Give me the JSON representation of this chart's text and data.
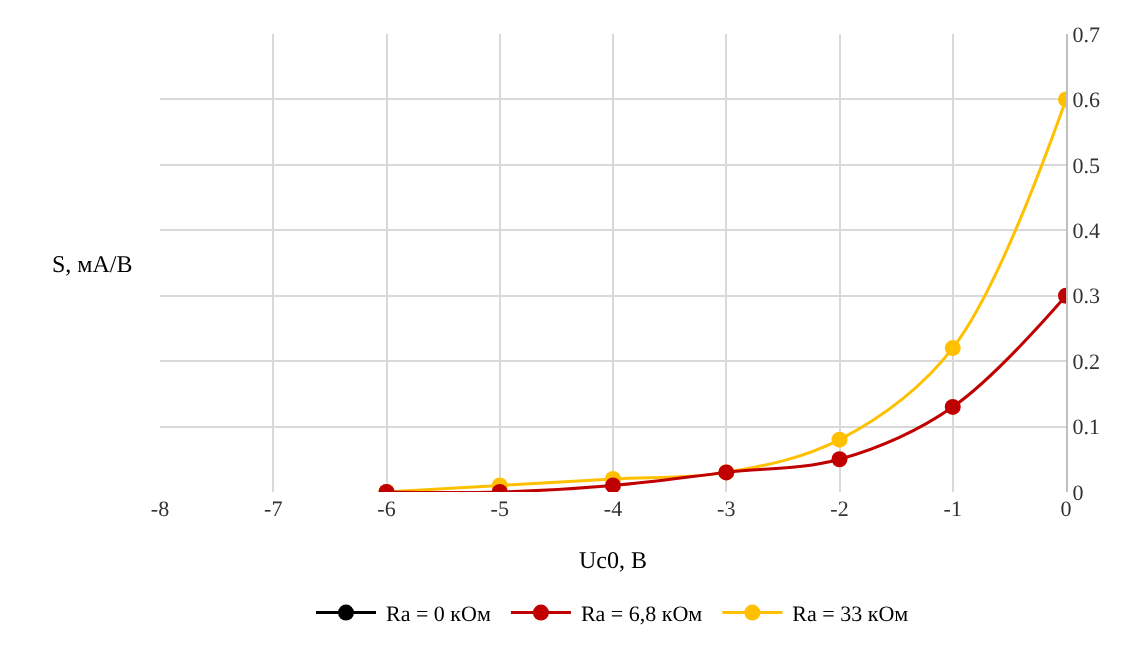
{
  "chart_data": {
    "type": "line",
    "xlabel": "Uc0, В",
    "ylabel": "S, мА/В",
    "x": [
      -6,
      -5,
      -4,
      -3,
      -2,
      -1,
      0
    ],
    "series": [
      {
        "name": "Ra = 0 кОм",
        "color": "#000000",
        "values": [
          null,
          null,
          null,
          null,
          null,
          null,
          null
        ]
      },
      {
        "name": "Ra = 6,8 кОм",
        "color": "#c00000",
        "values": [
          0,
          0,
          0.01,
          0.03,
          0.05,
          0.13,
          0.3
        ]
      },
      {
        "name": "Ra = 33 кОм",
        "color": "#ffc000",
        "values": [
          0,
          0.01,
          0.02,
          0.03,
          0.08,
          0.22,
          0.6
        ]
      }
    ],
    "xlim": [
      -8,
      0
    ],
    "xticks": [
      -8,
      -7,
      -6,
      -5,
      -4,
      -3,
      -2,
      -1,
      0
    ],
    "ylim": [
      0,
      0.7
    ],
    "yticks": [
      0,
      0.1,
      0.2,
      0.3,
      0.4,
      0.5,
      0.6,
      0.7
    ],
    "grid": true,
    "legend": "bottom",
    "marker": "circle",
    "line_style": "solid"
  }
}
